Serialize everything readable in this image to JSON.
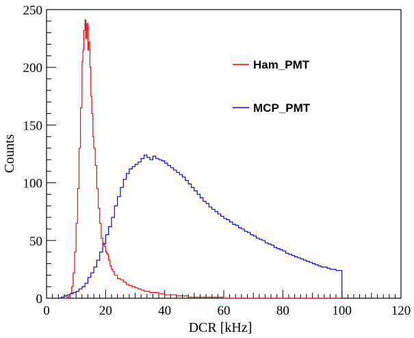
{
  "chart_data": {
    "type": "line",
    "title": "",
    "xlabel": "DCR [kHz]",
    "ylabel": "Counts",
    "xlim": [
      0,
      120
    ],
    "ylim": [
      0,
      250
    ],
    "xticks": [
      0,
      20,
      40,
      60,
      80,
      100,
      120
    ],
    "yticks": [
      0,
      50,
      100,
      150,
      200,
      250
    ],
    "grid": false,
    "legend": "top-right",
    "series": [
      {
        "name": "Ham_PMT",
        "color": "#ff0000",
        "points": [
          [
            6,
            0
          ],
          [
            7,
            1
          ],
          [
            7.5,
            2
          ],
          [
            8,
            4
          ],
          [
            8.5,
            10
          ],
          [
            9,
            22
          ],
          [
            9.5,
            40
          ],
          [
            10,
            65
          ],
          [
            10.5,
            95
          ],
          [
            11,
            130
          ],
          [
            11.5,
            165
          ],
          [
            12,
            205
          ],
          [
            12.3,
            215
          ],
          [
            12.6,
            232
          ],
          [
            13,
            241
          ],
          [
            13.3,
            225
          ],
          [
            13.6,
            238
          ],
          [
            14,
            215
          ],
          [
            14.3,
            222
          ],
          [
            14.7,
            200
          ],
          [
            15,
            175
          ],
          [
            15.3,
            160
          ],
          [
            15.7,
            140
          ],
          [
            16,
            130
          ],
          [
            16.5,
            115
          ],
          [
            17,
            95
          ],
          [
            17.5,
            78
          ],
          [
            18,
            65
          ],
          [
            18.5,
            52
          ],
          [
            19,
            48
          ],
          [
            19.5,
            45
          ],
          [
            20,
            40
          ],
          [
            20.5,
            38
          ],
          [
            21,
            33
          ],
          [
            21.5,
            28
          ],
          [
            22,
            25
          ],
          [
            22.5,
            23
          ],
          [
            23,
            20
          ],
          [
            24,
            17
          ],
          [
            25,
            16
          ],
          [
            26,
            14
          ],
          [
            27,
            12
          ],
          [
            28,
            11
          ],
          [
            29,
            10
          ],
          [
            30,
            9
          ],
          [
            31,
            8
          ],
          [
            32,
            7
          ],
          [
            33,
            6
          ],
          [
            34,
            6
          ],
          [
            35,
            5
          ],
          [
            36,
            5
          ],
          [
            38,
            4
          ],
          [
            40,
            3
          ],
          [
            42,
            3
          ],
          [
            44,
            2
          ],
          [
            46,
            2
          ],
          [
            48,
            1
          ],
          [
            50,
            1
          ],
          [
            55,
            1
          ],
          [
            60,
            0
          ],
          [
            70,
            0
          ],
          [
            80,
            0
          ],
          [
            90,
            0
          ],
          [
            100,
            0
          ]
        ]
      },
      {
        "name": "MCP_PMT",
        "color": "#0000ff",
        "points": [
          [
            4,
            0
          ],
          [
            5,
            1
          ],
          [
            6,
            2
          ],
          [
            7,
            3
          ],
          [
            8,
            4
          ],
          [
            9,
            5
          ],
          [
            10,
            6
          ],
          [
            11,
            8
          ],
          [
            12,
            10
          ],
          [
            13,
            13
          ],
          [
            14,
            18
          ],
          [
            15,
            22
          ],
          [
            16,
            27
          ],
          [
            17,
            33
          ],
          [
            18,
            40
          ],
          [
            19,
            47
          ],
          [
            20,
            55
          ],
          [
            21,
            62
          ],
          [
            22,
            70
          ],
          [
            23,
            80
          ],
          [
            24,
            88
          ],
          [
            25,
            96
          ],
          [
            26,
            103
          ],
          [
            27,
            108
          ],
          [
            28,
            112
          ],
          [
            29,
            114
          ],
          [
            30,
            116
          ],
          [
            31,
            118
          ],
          [
            32,
            121
          ],
          [
            33,
            124
          ],
          [
            34,
            122
          ],
          [
            35,
            120
          ],
          [
            36,
            123
          ],
          [
            37,
            121
          ],
          [
            38,
            120
          ],
          [
            39,
            119
          ],
          [
            40,
            117
          ],
          [
            41,
            115
          ],
          [
            42,
            113
          ],
          [
            43,
            111
          ],
          [
            44,
            109
          ],
          [
            45,
            107
          ],
          [
            46,
            105
          ],
          [
            47,
            102
          ],
          [
            48,
            99
          ],
          [
            49,
            96
          ],
          [
            50,
            93
          ],
          [
            51,
            90
          ],
          [
            52,
            87
          ],
          [
            53,
            84
          ],
          [
            54,
            82
          ],
          [
            55,
            79
          ],
          [
            56,
            77
          ],
          [
            57,
            75
          ],
          [
            58,
            73
          ],
          [
            59,
            71
          ],
          [
            60,
            69
          ],
          [
            61,
            68
          ],
          [
            62,
            66
          ],
          [
            63,
            64
          ],
          [
            64,
            63
          ],
          [
            65,
            61
          ],
          [
            66,
            60
          ],
          [
            67,
            58
          ],
          [
            68,
            57
          ],
          [
            69,
            55
          ],
          [
            70,
            54
          ],
          [
            71,
            52
          ],
          [
            72,
            51
          ],
          [
            73,
            50
          ],
          [
            74,
            48
          ],
          [
            75,
            47
          ],
          [
            76,
            46
          ],
          [
            77,
            44
          ],
          [
            78,
            43
          ],
          [
            79,
            42
          ],
          [
            80,
            41
          ],
          [
            81,
            39
          ],
          [
            82,
            38
          ],
          [
            83,
            37
          ],
          [
            84,
            36
          ],
          [
            85,
            35
          ],
          [
            86,
            34
          ],
          [
            87,
            33
          ],
          [
            88,
            32
          ],
          [
            89,
            31
          ],
          [
            90,
            30
          ],
          [
            91,
            29
          ],
          [
            92,
            28
          ],
          [
            93,
            27
          ],
          [
            94,
            27
          ],
          [
            95,
            26
          ],
          [
            96,
            25
          ],
          [
            97,
            25
          ],
          [
            98,
            24
          ],
          [
            99,
            24
          ],
          [
            100,
            0
          ]
        ]
      }
    ]
  }
}
